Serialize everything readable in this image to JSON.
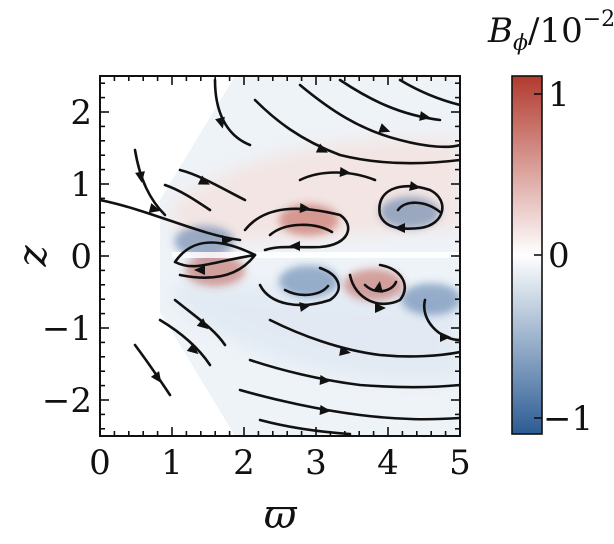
{
  "chart_data": {
    "type": "heatmap",
    "title": "",
    "xlabel": "ϖ",
    "ylabel": "z",
    "xlim": [
      0,
      5
    ],
    "ylim": [
      -2.5,
      2.5
    ],
    "x_ticks": [
      "0",
      "1",
      "2",
      "3",
      "4",
      "5"
    ],
    "y_ticks": [
      "2",
      "1",
      "0",
      "−1",
      "−2"
    ],
    "colorbar": {
      "title_main": "B",
      "title_sub": "ϕ",
      "title_rest": "/10",
      "title_exp": "−2",
      "range": [
        -1,
        1
      ],
      "ticks": [
        "1",
        "0",
        "−1"
      ],
      "colors": {
        "high": "#b23a2e",
        "mid": "#ffffff",
        "low": "#2c5c94"
      }
    },
    "field_features": [
      {
        "sign": "negative",
        "x": 1.45,
        "y": 0.2
      },
      {
        "sign": "positive",
        "x": 1.6,
        "y": -0.2
      },
      {
        "sign": "positive",
        "x": 2.9,
        "y": 0.5
      },
      {
        "sign": "negative",
        "x": 2.9,
        "y": -0.35
      },
      {
        "sign": "positive",
        "x": 3.8,
        "y": -0.4
      },
      {
        "sign": "negative",
        "x": 4.3,
        "y": 0.6
      },
      {
        "sign": "negative",
        "x": 4.6,
        "y": -0.6
      }
    ],
    "grid": false,
    "overlay": "streamlines"
  }
}
